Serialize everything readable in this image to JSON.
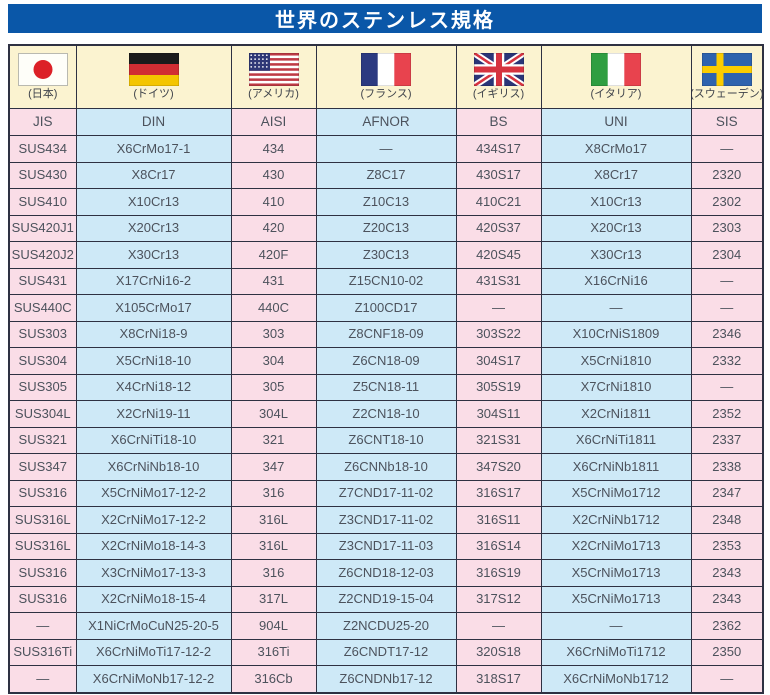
{
  "title": "世界のステンレス規格",
  "colors": {
    "title_bg": "#0A57A8",
    "title_text": "#FFFFFF",
    "cell_pink": "#FADDE7",
    "cell_blue": "#CEE9F7",
    "flag_row_cream": "#FBF3D0",
    "border": "#2E3142",
    "text": "#4C525C"
  },
  "columns": [
    {
      "country": "(日本)",
      "standard": "JIS",
      "flag": "japan",
      "tone": "pink"
    },
    {
      "country": "(ドイツ)",
      "standard": "DIN",
      "flag": "germany",
      "tone": "blue"
    },
    {
      "country": "(アメリカ)",
      "standard": "AISI",
      "flag": "usa",
      "tone": "pink"
    },
    {
      "country": "(フランス)",
      "standard": "AFNOR",
      "flag": "france",
      "tone": "blue"
    },
    {
      "country": "(イギリス)",
      "standard": "BS",
      "flag": "uk",
      "tone": "pink"
    },
    {
      "country": "(イタリア)",
      "standard": "UNI",
      "flag": "italy",
      "tone": "blue"
    },
    {
      "country": "(スウェーデン)",
      "standard": "SIS",
      "flag": "sweden",
      "tone": "pink"
    }
  ],
  "rows": [
    [
      "SUS434",
      "X6CrMo17-1",
      "434",
      "—",
      "434S17",
      "X8CrMo17",
      "—"
    ],
    [
      "SUS430",
      "X8Cr17",
      "430",
      "Z8C17",
      "430S17",
      "X8Cr17",
      "2320"
    ],
    [
      "SUS410",
      "X10Cr13",
      "410",
      "Z10C13",
      "410C21",
      "X10Cr13",
      "2302"
    ],
    [
      "SUS420J1",
      "X20Cr13",
      "420",
      "Z20C13",
      "420S37",
      "X20Cr13",
      "2303"
    ],
    [
      "SUS420J2",
      "X30Cr13",
      "420F",
      "Z30C13",
      "420S45",
      "X30Cr13",
      "2304"
    ],
    [
      "SUS431",
      "X17CrNi16-2",
      "431",
      "Z15CN10-02",
      "431S31",
      "X16CrNi16",
      "—"
    ],
    [
      "SUS440C",
      "X105CrMo17",
      "440C",
      "Z100CD17",
      "—",
      "—",
      "—"
    ],
    [
      "SUS303",
      "X8CrNi18-9",
      "303",
      "Z8CNF18-09",
      "303S22",
      "X10CrNiS1809",
      "2346"
    ],
    [
      "SUS304",
      "X5CrNi18-10",
      "304",
      "Z6CN18-09",
      "304S17",
      "X5CrNi1810",
      "2332"
    ],
    [
      "SUS305",
      "X4CrNi18-12",
      "305",
      "Z5CN18-11",
      "305S19",
      "X7CrNi1810",
      "—"
    ],
    [
      "SUS304L",
      "X2CrNi19-11",
      "304L",
      "Z2CN18-10",
      "304S11",
      "X2CrNi1811",
      "2352"
    ],
    [
      "SUS321",
      "X6CrNiTi18-10",
      "321",
      "Z6CNT18-10",
      "321S31",
      "X6CrNiTi1811",
      "2337"
    ],
    [
      "SUS347",
      "X6CrNiNb18-10",
      "347",
      "Z6CNNb18-10",
      "347S20",
      "X6CrNiNb1811",
      "2338"
    ],
    [
      "SUS316",
      "X5CrNiMo17-12-2",
      "316",
      "Z7CND17-11-02",
      "316S17",
      "X5CrNiMo1712",
      "2347"
    ],
    [
      "SUS316L",
      "X2CrNiMo17-12-2",
      "316L",
      "Z3CND17-11-02",
      "316S11",
      "X2CrNiNb1712",
      "2348"
    ],
    [
      "SUS316L",
      "X2CrNiMo18-14-3",
      "316L",
      "Z3CND17-11-03",
      "316S14",
      "X2CrNiMo1713",
      "2353"
    ],
    [
      "SUS316",
      "X3CrNiMo17-13-3",
      "316",
      "Z6CND18-12-03",
      "316S19",
      "X5CrNiMo1713",
      "2343"
    ],
    [
      "SUS316",
      "X2CrNiMo18-15-4",
      "317L",
      "Z2CND19-15-04",
      "317S12",
      "X5CrNiMo1713",
      "2343"
    ],
    [
      "—",
      "X1NiCrMoCuN25-20-5",
      "904L",
      "Z2NCDU25-20",
      "—",
      "—",
      "2362"
    ],
    [
      "SUS316Ti",
      "X6CrNiMoTi17-12-2",
      "316Ti",
      "Z6CNDT17-12",
      "320S18",
      "X6CrNiMoTi1712",
      "2350"
    ],
    [
      "—",
      "X6CrNiMoNb17-12-2",
      "316Cb",
      "Z6CNDNb17-12",
      "318S17",
      "X6CrNiMoNb1712",
      "—"
    ]
  ]
}
